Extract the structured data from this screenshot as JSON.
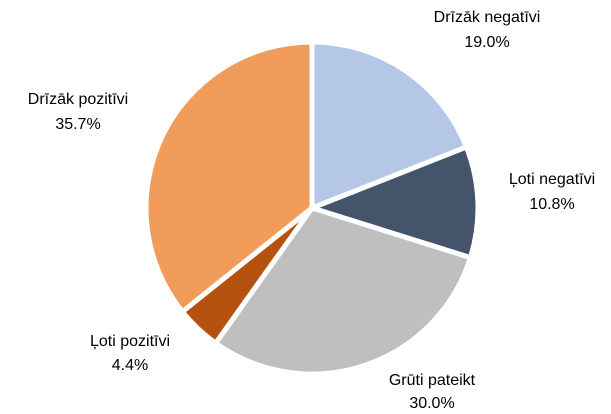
{
  "chart_data": {
    "type": "pie",
    "categories": [
      "Drīzāk negatīvi",
      "Ļoti negatīvi",
      "Grūti pateikt",
      "Ļoti pozitīvi",
      "Drīzāk pozitīvi"
    ],
    "values": [
      19.0,
      10.8,
      30.0,
      4.4,
      35.7
    ],
    "value_labels": [
      "19.0%",
      "10.8%",
      "30.0%",
      "4.4%",
      "35.7%"
    ],
    "colors": [
      "#b4c7e7",
      "#44546a",
      "#bfbfbf",
      "#b5520f",
      "#f29c5c"
    ]
  }
}
